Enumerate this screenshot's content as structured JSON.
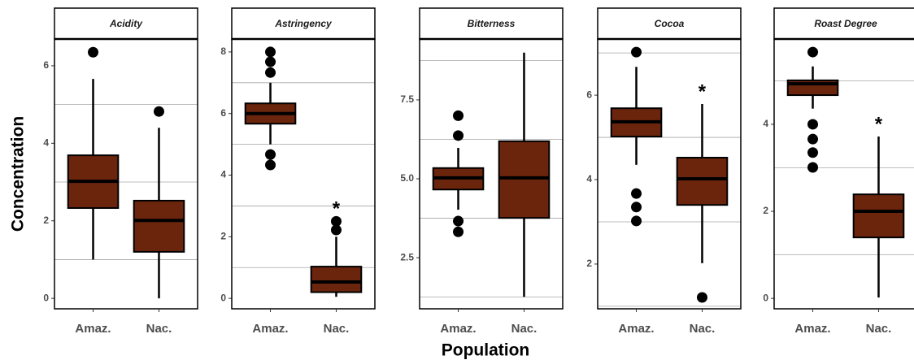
{
  "chart_data": {
    "type": "box",
    "xlabel": "Population",
    "ylabel": "Concentration",
    "color": "#6b250d",
    "panels": [
      {
        "title": "Acidity",
        "categories": [
          "Amaz.",
          "Nac."
        ],
        "ylim": [
          -0.27,
          6.69
        ],
        "yticks": [
          0,
          2,
          4,
          6
        ],
        "minor_grid": [
          1,
          3,
          5
        ],
        "boxes": [
          {
            "min": 1.0,
            "q1": 2.33,
            "median": 3.02,
            "q3": 3.69,
            "max": 5.66,
            "outliers": [
              6.35
            ]
          },
          {
            "min": 0,
            "q1": 1.2,
            "median": 2.01,
            "q3": 2.52,
            "max": 4.4,
            "outliers": [
              4.82
            ]
          }
        ],
        "annotations": [
          null,
          null
        ]
      },
      {
        "title": "Astringency",
        "categories": [
          "Amaz.",
          "Nac."
        ],
        "ylim": [
          -0.34,
          8.42
        ],
        "yticks": [
          0,
          2,
          4,
          6,
          8
        ],
        "minor_grid": [
          1,
          3,
          5,
          7
        ],
        "boxes": [
          {
            "min": 5.0,
            "q1": 5.67,
            "median": 6.0,
            "q3": 6.33,
            "max": 7.0,
            "outliers": [
              8.0,
              7.68,
              7.33,
              4.67,
              4.33
            ]
          },
          {
            "min": 0.05,
            "q1": 0.2,
            "median": 0.53,
            "q3": 1.03,
            "max": 2.0,
            "outliers": [
              2.5,
              2.22
            ]
          }
        ],
        "annotations": [
          null,
          "*"
        ]
      },
      {
        "title": "Bitterness",
        "categories": [
          "Amaz.",
          "Nac."
        ],
        "ylim": [
          0.88,
          9.43
        ],
        "yticks": [
          2.5,
          {
            "value": 5,
            "label": "5.0"
          },
          7.5
        ],
        "minor_grid": [
          1.25,
          3.75,
          6.25,
          8.75
        ],
        "boxes": [
          {
            "min": 4.02,
            "q1": 4.66,
            "median": 5.03,
            "q3": 5.34,
            "max": 5.98,
            "outliers": [
              7.0,
              6.37,
              3.66,
              3.32
            ]
          },
          {
            "min": 1.26,
            "q1": 3.76,
            "median": 5.03,
            "q3": 6.19,
            "max": 9.0,
            "outliers": []
          }
        ],
        "annotations": [
          null,
          null
        ]
      },
      {
        "title": "Cocoa",
        "categories": [
          "Amaz.",
          "Nac."
        ],
        "ylim": [
          0.94,
          7.33
        ],
        "yticks": [
          2,
          4,
          6
        ],
        "minor_grid": [
          1,
          3,
          5,
          7
        ],
        "boxes": [
          {
            "min": 4.35,
            "q1": 5.02,
            "median": 5.37,
            "q3": 5.69,
            "max": 6.67,
            "outliers": [
              7.02,
              3.67,
              3.35,
              3.02
            ]
          },
          {
            "min": 2.02,
            "q1": 3.4,
            "median": 4.02,
            "q3": 4.52,
            "max": 5.79,
            "outliers": [
              1.21
            ]
          }
        ],
        "annotations": [
          null,
          "*"
        ]
      },
      {
        "title": "Roast Degree",
        "categories": [
          "Amaz.",
          "Nac."
        ],
        "ylim": [
          -0.24,
          5.96
        ],
        "yticks": [
          0,
          2,
          4
        ],
        "minor_grid": [
          1,
          3,
          5
        ],
        "boxes": [
          {
            "min": 4.36,
            "q1": 4.67,
            "median": 4.93,
            "q3": 5.01,
            "max": 5.33,
            "outliers": [
              5.66,
              4.0,
              3.66,
              3.35,
              3.01
            ]
          },
          {
            "min": 0.02,
            "q1": 1.4,
            "median": 2.0,
            "q3": 2.39,
            "max": 3.72,
            "outliers": []
          }
        ],
        "annotations": [
          null,
          "*"
        ]
      }
    ]
  }
}
